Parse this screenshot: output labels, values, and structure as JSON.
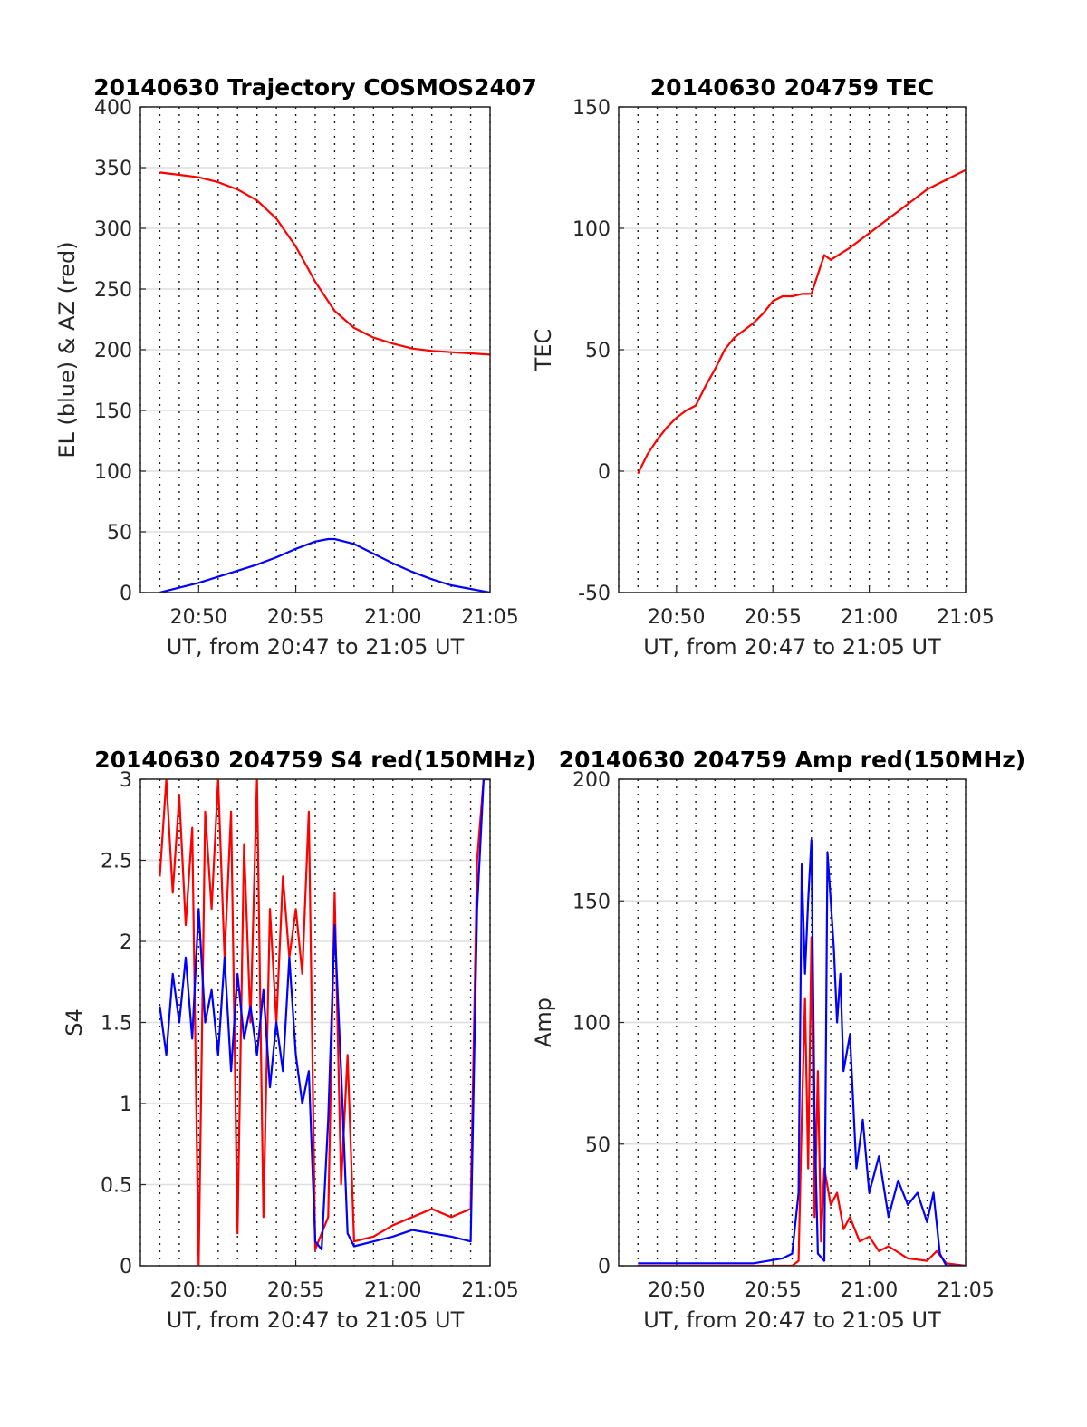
{
  "chart_data": [
    {
      "type": "line",
      "title": "20140630 Trajectory COSMOS2407",
      "xlabel": "UT, from 20:47 to 21:05 UT",
      "ylabel": "EL (blue) & AZ (red)",
      "x_tick_labels": [
        "20:50",
        "20:55",
        "21:00",
        "21:05"
      ],
      "y_tick_labels": [
        "0",
        "50",
        "100",
        "150",
        "200",
        "250",
        "300",
        "350",
        "400"
      ],
      "xlim": [
        "20:47",
        "21:05"
      ],
      "ylim": [
        0,
        400
      ],
      "grid": "dotted",
      "series": [
        {
          "color": "#ff0000",
          "x": [
            "20:48:00",
            "20:49:00",
            "20:50:00",
            "20:51:00",
            "20:52:00",
            "20:53:00",
            "20:54:00",
            "20:55:00",
            "20:56:00",
            "20:57:00",
            "20:58:00",
            "20:59:00",
            "21:00:00",
            "21:01:00",
            "21:02:00",
            "21:03:00",
            "21:04:00",
            "21:05:00"
          ],
          "values": [
            346,
            344,
            342,
            338,
            332,
            323,
            308,
            285,
            256,
            232,
            218,
            210,
            205,
            201,
            199,
            198,
            197,
            196
          ]
        },
        {
          "color": "#0000ff",
          "x": [
            "20:48:00",
            "20:49:00",
            "20:50:00",
            "20:51:00",
            "20:52:00",
            "20:53:00",
            "20:54:00",
            "20:55:00",
            "20:56:00",
            "20:56:40",
            "20:57:00",
            "20:58:00",
            "20:59:00",
            "21:00:00",
            "21:01:00",
            "21:02:00",
            "21:03:00",
            "21:04:00",
            "21:05:00"
          ],
          "values": [
            0,
            4,
            8,
            13,
            18,
            23,
            29,
            36,
            42,
            44,
            44,
            40,
            32,
            24,
            17,
            11,
            6,
            3,
            0
          ]
        }
      ]
    },
    {
      "type": "line",
      "title": "20140630 204759 TEC",
      "xlabel": "UT, from 20:47 to 21:05 UT",
      "ylabel": "TEC",
      "x_tick_labels": [
        "20:50",
        "20:55",
        "21:00",
        "21:05"
      ],
      "y_tick_labels": [
        "-50",
        "0",
        "50",
        "100",
        "150"
      ],
      "xlim": [
        "20:47",
        "21:05"
      ],
      "ylim": [
        -50,
        150
      ],
      "grid": "dotted",
      "series": [
        {
          "color": "#ff0000",
          "x": [
            "20:48:00",
            "20:48:30",
            "20:49:00",
            "20:49:30",
            "20:50:00",
            "20:50:30",
            "20:51:00",
            "20:51:30",
            "20:52:00",
            "20:52:30",
            "20:53:00",
            "20:53:30",
            "20:54:00",
            "20:54:30",
            "20:55:00",
            "20:55:30",
            "20:56:00",
            "20:56:30",
            "20:57:00",
            "20:57:30",
            "20:57:40",
            "20:58:00",
            "20:59:00",
            "21:00:00",
            "21:01:00",
            "21:02:00",
            "21:03:00",
            "21:04:00",
            "21:05:00"
          ],
          "values": [
            -1,
            7,
            13,
            18,
            22,
            25,
            27,
            35,
            42,
            50,
            55,
            58,
            61,
            65,
            70,
            72,
            72,
            73,
            73,
            85,
            89,
            87,
            92,
            98,
            104,
            110,
            116,
            120,
            124
          ]
        }
      ]
    },
    {
      "type": "line",
      "title": "20140630 204759 S4 red(150MHz)",
      "xlabel": "UT, from 20:47 to 21:05 UT",
      "ylabel": "S4",
      "x_tick_labels": [
        "20:50",
        "20:55",
        "21:00",
        "21:05"
      ],
      "y_tick_labels": [
        "0",
        "0.5",
        "1",
        "1.5",
        "2",
        "2.5",
        "3"
      ],
      "xlim": [
        "20:47",
        "21:05"
      ],
      "ylim": [
        0,
        3
      ],
      "grid": "dotted",
      "series": [
        {
          "color": "#ff0000",
          "x": [
            "20:48:00",
            "20:48:20",
            "20:48:40",
            "20:49:00",
            "20:49:20",
            "20:49:40",
            "20:50:00",
            "20:50:20",
            "20:50:40",
            "20:51:00",
            "20:51:20",
            "20:51:40",
            "20:52:00",
            "20:52:20",
            "20:52:40",
            "20:53:00",
            "20:53:20",
            "20:53:40",
            "20:54:00",
            "20:54:20",
            "20:54:40",
            "20:55:00",
            "20:55:20",
            "20:55:40",
            "20:56:00",
            "20:56:20",
            "20:56:40",
            "20:57:00",
            "20:57:20",
            "20:57:40",
            "20:58:00",
            "20:59:00",
            "21:00:00",
            "21:01:00",
            "21:02:00",
            "21:03:00",
            "21:04:00",
            "21:04:20",
            "21:04:40",
            "21:05:00"
          ],
          "values": [
            2.4,
            3,
            2.3,
            2.9,
            2.1,
            2.7,
            0,
            2.8,
            2.2,
            3,
            1.9,
            2.8,
            0.2,
            2.6,
            1.5,
            3,
            0.3,
            2.2,
            1.5,
            2.4,
            1.9,
            2.2,
            1.8,
            2.8,
            0.1,
            0.2,
            0.3,
            2.3,
            0.5,
            1.3,
            0.15,
            0.18,
            0.25,
            0.3,
            0.35,
            0.3,
            0.35,
            2.5,
            3,
            3
          ]
        },
        {
          "color": "#0000ff",
          "x": [
            "20:48:00",
            "20:48:20",
            "20:48:40",
            "20:49:00",
            "20:49:20",
            "20:49:40",
            "20:50:00",
            "20:50:20",
            "20:50:40",
            "20:51:00",
            "20:51:20",
            "20:51:40",
            "20:52:00",
            "20:52:20",
            "20:52:40",
            "20:53:00",
            "20:53:20",
            "20:53:40",
            "20:54:00",
            "20:54:20",
            "20:54:40",
            "20:55:00",
            "20:55:20",
            "20:55:40",
            "20:56:00",
            "20:56:20",
            "20:56:40",
            "20:57:00",
            "20:57:20",
            "20:57:40",
            "20:58:00",
            "20:59:00",
            "21:00:00",
            "21:01:00",
            "21:02:00",
            "21:03:00",
            "21:04:00",
            "21:04:20",
            "21:04:40",
            "21:05:00"
          ],
          "values": [
            1.6,
            1.3,
            1.8,
            1.5,
            1.9,
            1.4,
            2.2,
            1.5,
            1.7,
            1.3,
            1.9,
            1.2,
            1.8,
            1.4,
            1.6,
            1.3,
            1.7,
            1.1,
            1.5,
            1.2,
            1.9,
            1.3,
            1.0,
            1.2,
            0.15,
            0.1,
            0.9,
            2.1,
            1.2,
            0.2,
            0.12,
            0.15,
            0.18,
            0.22,
            0.2,
            0.18,
            0.15,
            2.2,
            3,
            3
          ]
        }
      ]
    },
    {
      "type": "line",
      "title": "20140630 204759 Amp red(150MHz)",
      "xlabel": "UT, from 20:47 to 21:05 UT",
      "ylabel": "Amp",
      "x_tick_labels": [
        "20:50",
        "20:55",
        "21:00",
        "21:05"
      ],
      "y_tick_labels": [
        "0",
        "50",
        "100",
        "150",
        "200"
      ],
      "xlim": [
        "20:47",
        "21:05"
      ],
      "ylim": [
        0,
        200
      ],
      "grid": "dotted",
      "series": [
        {
          "color": "#ff0000",
          "x": [
            "20:48:00",
            "20:52:00",
            "20:56:00",
            "20:56:20",
            "20:56:30",
            "20:56:40",
            "20:56:50",
            "20:57:00",
            "20:57:10",
            "20:57:20",
            "20:57:30",
            "20:57:40",
            "20:58:00",
            "20:58:20",
            "20:58:40",
            "20:59:00",
            "20:59:30",
            "21:00:00",
            "21:00:30",
            "21:01:00",
            "21:02:00",
            "21:03:00",
            "21:03:30",
            "21:04:00",
            "21:05:00"
          ],
          "values": [
            0,
            0,
            0,
            2,
            60,
            110,
            40,
            135,
            20,
            80,
            10,
            40,
            25,
            30,
            15,
            20,
            10,
            12,
            6,
            8,
            3,
            2,
            6,
            1,
            0
          ]
        },
        {
          "color": "#0000ff",
          "x": [
            "20:48:00",
            "20:50:00",
            "20:52:00",
            "20:54:00",
            "20:55:30",
            "20:56:00",
            "20:56:20",
            "20:56:30",
            "20:56:40",
            "20:56:50",
            "20:57:00",
            "20:57:10",
            "20:57:20",
            "20:57:40",
            "20:57:50",
            "20:58:00",
            "20:58:10",
            "20:58:20",
            "20:58:30",
            "20:58:40",
            "20:59:00",
            "20:59:20",
            "20:59:40",
            "21:00:00",
            "21:00:30",
            "21:01:00",
            "21:01:30",
            "21:02:00",
            "21:02:30",
            "21:03:00",
            "21:03:20",
            "21:03:40",
            "21:04:00",
            "21:05:00"
          ],
          "values": [
            1,
            1,
            1,
            1,
            3,
            5,
            30,
            165,
            120,
            150,
            175,
            60,
            5,
            2,
            170,
            150,
            130,
            100,
            120,
            80,
            95,
            40,
            60,
            30,
            45,
            20,
            35,
            25,
            30,
            18,
            30,
            5,
            0,
            0
          ]
        }
      ]
    }
  ]
}
